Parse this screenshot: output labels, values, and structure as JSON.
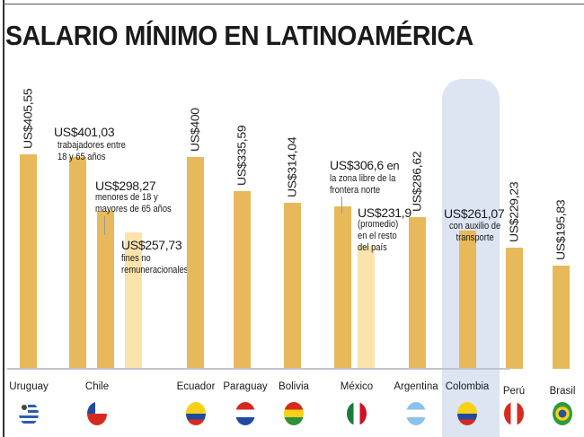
{
  "chart_data": {
    "type": "bar",
    "title": "SALARIO MÍNIMO EN LATINOAMÉRICA",
    "xlabel": "",
    "ylabel": "US$",
    "ylim": [
      0,
      420
    ],
    "grid": false,
    "bars": [
      {
        "country": "Uruguay",
        "value": 405.55,
        "label": "US$405,55",
        "note": "",
        "shade": "main"
      },
      {
        "country": "Chile",
        "value": 401.03,
        "label": "US$401,03",
        "note": "trabajadores entre|18 y 65 años",
        "shade": "main"
      },
      {
        "country": "Chile",
        "value": 298.27,
        "label": "US$298,27",
        "note": "menores de 18 y|mayores de 65 años",
        "shade": "main"
      },
      {
        "country": "Chile",
        "value": 257.73,
        "label": "US$257,73",
        "note": "fines no|remuneracionales",
        "shade": "light"
      },
      {
        "country": "Ecuador",
        "value": 400,
        "label": "US$400",
        "note": "",
        "shade": "main"
      },
      {
        "country": "Paraguay",
        "value": 335.59,
        "label": "US$335,59",
        "note": "",
        "shade": "main"
      },
      {
        "country": "Bolivia",
        "value": 314.04,
        "label": "US$314,04",
        "note": "",
        "shade": "main"
      },
      {
        "country": "México",
        "value": 306.6,
        "label": "US$306,6",
        "note": "en|la zona libre de la|frontera norte",
        "shade": "main"
      },
      {
        "country": "México",
        "value": 231.9,
        "label": "US$231,9",
        "note": "(promedio)|en el resto|del país",
        "shade": "light"
      },
      {
        "country": "Argentina",
        "value": 286.62,
        "label": "US$286,62",
        "note": "",
        "shade": "main"
      },
      {
        "country": "Colombia",
        "value": 261.07,
        "label": "US$261,07",
        "note": "con auxilio de|transporte",
        "shade": "main"
      },
      {
        "country": "Perú",
        "value": 229.23,
        "label": "US$229,23",
        "note": "",
        "shade": "main"
      },
      {
        "country": "Brasil",
        "value": 195.83,
        "label": "US$195,83",
        "note": "",
        "shade": "main"
      }
    ],
    "countries": [
      "Uruguay",
      "Chile",
      "Ecuador",
      "Paraguay",
      "Bolivia",
      "México",
      "Argentina",
      "Colombia",
      "Perú",
      "Brasil"
    ],
    "highlight": "Colombia",
    "colors": {
      "main": "#e7b95b",
      "light": "#fbe3ac",
      "highlight": "#dde5f3"
    }
  }
}
